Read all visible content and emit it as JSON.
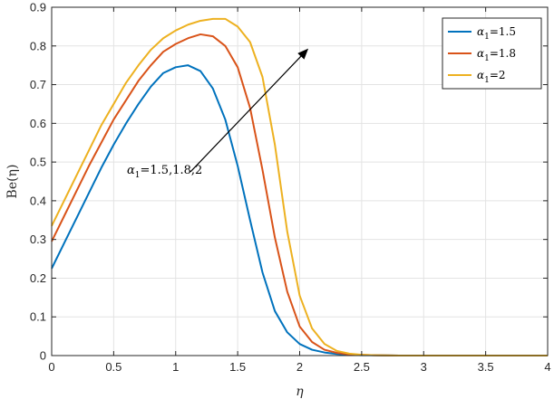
{
  "chart_data": {
    "type": "line",
    "xlabel": "η",
    "ylabel": "Be(η)",
    "xlim": [
      0,
      4
    ],
    "ylim": [
      0,
      0.9
    ],
    "grid": true,
    "legend_placement": "top-right",
    "x_ticks": [
      0,
      0.5,
      1,
      1.5,
      2,
      2.5,
      3,
      3.5,
      4
    ],
    "x_tick_labels": [
      "0",
      "0.5",
      "1",
      "1.5",
      "2",
      "2.5",
      "3",
      "3.5",
      "4"
    ],
    "y_ticks": [
      0,
      0.1,
      0.2,
      0.3,
      0.4,
      0.5,
      0.6,
      0.7,
      0.8,
      0.9
    ],
    "y_tick_labels": [
      "0",
      "0.1",
      "0.2",
      "0.3",
      "0.4",
      "0.5",
      "0.6",
      "0.7",
      "0.8",
      "0.9"
    ],
    "x": [
      0,
      0.1,
      0.2,
      0.3,
      0.4,
      0.5,
      0.6,
      0.7,
      0.8,
      0.9,
      1.0,
      1.1,
      1.2,
      1.3,
      1.4,
      1.5,
      1.6,
      1.7,
      1.8,
      1.9,
      2.0,
      2.1,
      2.2,
      2.3,
      2.4,
      2.5,
      2.6,
      2.8,
      3.0,
      3.5,
      4.0
    ],
    "series": [
      {
        "name_greek": "α",
        "name_sub": "1",
        "name_value": "=1.5",
        "color": "#0072BD",
        "values": [
          0.225,
          0.29,
          0.355,
          0.42,
          0.485,
          0.545,
          0.6,
          0.65,
          0.695,
          0.73,
          0.745,
          0.75,
          0.735,
          0.69,
          0.61,
          0.49,
          0.35,
          0.215,
          0.115,
          0.06,
          0.03,
          0.015,
          0.008,
          0.004,
          0.002,
          0.001,
          0.001,
          0.0,
          0.0,
          0.0,
          0.0
        ]
      },
      {
        "name_greek": "α",
        "name_sub": "1",
        "name_value": "=1.8",
        "color": "#D95319",
        "values": [
          0.295,
          0.36,
          0.425,
          0.49,
          0.55,
          0.61,
          0.66,
          0.71,
          0.75,
          0.785,
          0.805,
          0.82,
          0.83,
          0.825,
          0.8,
          0.745,
          0.64,
          0.48,
          0.305,
          0.165,
          0.075,
          0.035,
          0.015,
          0.007,
          0.003,
          0.002,
          0.001,
          0.0,
          0.0,
          0.0,
          0.0
        ]
      },
      {
        "name_greek": "α",
        "name_sub": "1",
        "name_value": "=2",
        "color": "#EDB120",
        "values": [
          0.335,
          0.4,
          0.465,
          0.53,
          0.595,
          0.65,
          0.705,
          0.75,
          0.79,
          0.82,
          0.84,
          0.855,
          0.865,
          0.87,
          0.87,
          0.85,
          0.81,
          0.72,
          0.545,
          0.32,
          0.155,
          0.07,
          0.03,
          0.012,
          0.005,
          0.002,
          0.001,
          0.0,
          0.0,
          0.0,
          0.0
        ]
      }
    ],
    "annotation": {
      "greek": "α",
      "sub": "1",
      "text": "=1.5,1.8,2",
      "arrow_from": [
        1.12,
        0.475
      ],
      "arrow_to": [
        2.06,
        0.79
      ]
    }
  }
}
